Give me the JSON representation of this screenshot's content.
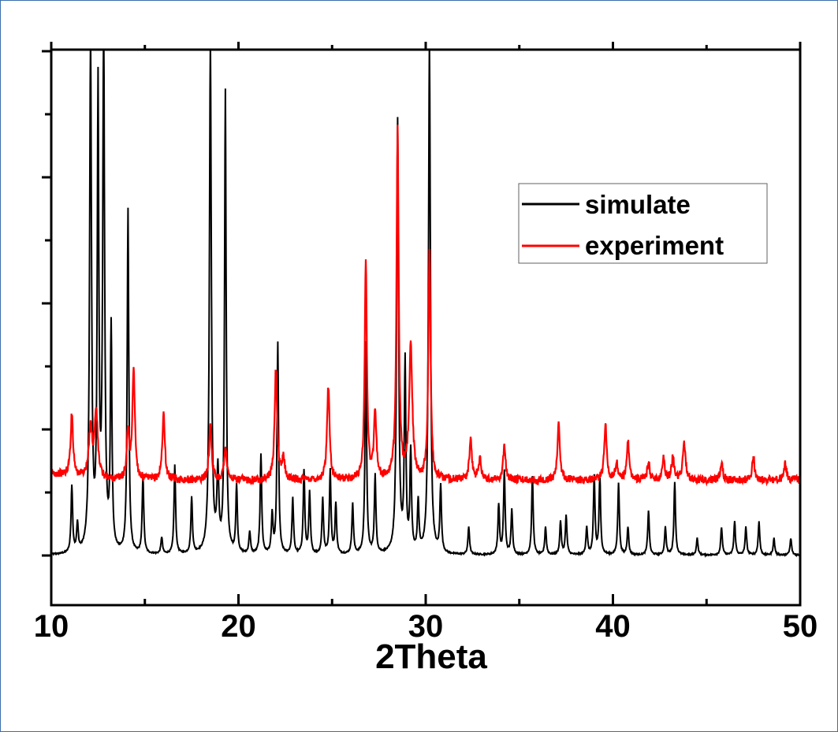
{
  "chart_data": {
    "type": "line",
    "xlabel": "2Theta",
    "ylabel": "",
    "xlim": [
      10,
      50
    ],
    "ylim": [
      0,
      100
    ],
    "x_ticks": [
      10,
      20,
      30,
      40,
      50
    ],
    "x_minor_ticks": [
      15,
      25,
      35,
      45
    ],
    "y_ticks_count": 9,
    "grid": false,
    "legend": "right",
    "series": [
      {
        "name": "simulate",
        "color": "#000000",
        "baseline": 9,
        "peaks": [
          [
            11.1,
            12,
            0.05
          ],
          [
            11.4,
            5,
            0.05
          ],
          [
            12.1,
            92,
            0.06
          ],
          [
            12.5,
            82,
            0.05
          ],
          [
            12.8,
            92,
            0.06
          ],
          [
            13.2,
            40,
            0.05
          ],
          [
            14.1,
            62,
            0.05
          ],
          [
            14.9,
            14,
            0.05
          ],
          [
            15.9,
            3,
            0.05
          ],
          [
            16.6,
            16,
            0.05
          ],
          [
            17.5,
            10,
            0.05
          ],
          [
            18.5,
            92,
            0.06
          ],
          [
            18.9,
            14,
            0.06
          ],
          [
            19.3,
            83,
            0.05
          ],
          [
            19.9,
            12,
            0.05
          ],
          [
            20.6,
            4,
            0.05
          ],
          [
            21.2,
            18,
            0.05
          ],
          [
            21.8,
            7,
            0.05
          ],
          [
            22.1,
            38,
            0.05
          ],
          [
            22.9,
            10,
            0.05
          ],
          [
            23.5,
            15,
            0.05
          ],
          [
            23.8,
            11,
            0.05
          ],
          [
            24.5,
            10,
            0.05
          ],
          [
            24.9,
            15,
            0.05
          ],
          [
            25.2,
            9,
            0.05
          ],
          [
            26.1,
            9,
            0.05
          ],
          [
            26.8,
            38,
            0.05
          ],
          [
            27.3,
            14,
            0.05
          ],
          [
            28.5,
            78,
            0.06
          ],
          [
            28.9,
            34,
            0.05
          ],
          [
            29.2,
            18,
            0.05
          ],
          [
            29.6,
            9,
            0.05
          ],
          [
            30.2,
            92,
            0.06
          ],
          [
            30.8,
            12,
            0.05
          ],
          [
            32.3,
            5,
            0.05
          ],
          [
            33.9,
            9,
            0.05
          ],
          [
            34.2,
            15,
            0.05
          ],
          [
            34.6,
            8,
            0.05
          ],
          [
            35.7,
            14,
            0.05
          ],
          [
            36.4,
            5,
            0.05
          ],
          [
            37.2,
            6,
            0.05
          ],
          [
            37.5,
            7,
            0.05
          ],
          [
            38.6,
            5,
            0.05
          ],
          [
            39.0,
            14,
            0.05
          ],
          [
            39.3,
            14,
            0.05
          ],
          [
            40.3,
            13,
            0.05
          ],
          [
            40.8,
            5,
            0.05
          ],
          [
            41.9,
            8,
            0.05
          ],
          [
            42.8,
            5,
            0.05
          ],
          [
            43.3,
            13,
            0.05
          ],
          [
            44.5,
            3,
            0.05
          ],
          [
            45.8,
            5,
            0.05
          ],
          [
            46.5,
            6,
            0.05
          ],
          [
            47.1,
            5,
            0.05
          ],
          [
            47.8,
            6,
            0.05
          ],
          [
            48.6,
            3,
            0.05
          ],
          [
            49.5,
            3,
            0.05
          ]
        ]
      },
      {
        "name": "experiment",
        "color": "#ff0000",
        "baseline": 22.5,
        "peaks": [
          [
            11.1,
            11,
            0.08
          ],
          [
            12.1,
            9,
            0.1
          ],
          [
            12.4,
            12,
            0.1
          ],
          [
            14.1,
            9,
            0.07
          ],
          [
            14.4,
            20,
            0.08
          ],
          [
            16.0,
            12,
            0.08
          ],
          [
            18.5,
            10,
            0.08
          ],
          [
            19.3,
            6,
            0.08
          ],
          [
            22.0,
            20,
            0.08
          ],
          [
            22.4,
            4,
            0.08
          ],
          [
            24.8,
            17,
            0.08
          ],
          [
            26.8,
            39,
            0.07
          ],
          [
            27.3,
            12,
            0.08
          ],
          [
            28.5,
            63,
            0.07
          ],
          [
            29.2,
            24,
            0.1
          ],
          [
            30.2,
            41,
            0.07
          ],
          [
            32.4,
            7,
            0.08
          ],
          [
            32.9,
            4,
            0.08
          ],
          [
            34.2,
            6,
            0.08
          ],
          [
            37.1,
            10,
            0.08
          ],
          [
            39.6,
            10,
            0.08
          ],
          [
            40.2,
            3,
            0.08
          ],
          [
            40.8,
            7,
            0.08
          ],
          [
            41.9,
            3,
            0.08
          ],
          [
            42.7,
            4,
            0.08
          ],
          [
            43.2,
            4,
            0.08
          ],
          [
            43.8,
            7,
            0.08
          ],
          [
            45.8,
            3,
            0.08
          ],
          [
            47.5,
            4,
            0.08
          ],
          [
            49.2,
            3,
            0.08
          ]
        ]
      }
    ]
  }
}
